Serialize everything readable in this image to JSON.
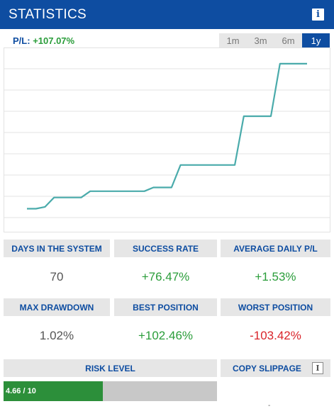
{
  "header": {
    "title": "STATISTICS",
    "info_icon": "info-icon"
  },
  "pl": {
    "label": "P/L:",
    "value": "+107.07%"
  },
  "ranges": [
    {
      "label": "1m",
      "active": false
    },
    {
      "label": "3m",
      "active": false
    },
    {
      "label": "6m",
      "active": false
    },
    {
      "label": "1y",
      "active": true
    }
  ],
  "chart_data": {
    "type": "line",
    "title": "",
    "xlabel": "",
    "ylabel": "",
    "x": [
      0,
      1,
      2,
      3,
      4,
      5,
      6,
      7,
      8,
      9,
      10,
      11,
      12,
      13,
      14,
      15,
      16,
      17,
      18,
      19,
      20,
      21,
      22,
      23,
      24,
      25,
      26,
      27,
      28,
      29,
      30,
      31
    ],
    "series": [
      {
        "values": [
          0,
          0,
          1.5,
          9,
          9,
          9,
          9,
          14,
          14,
          14,
          14,
          14,
          14,
          14,
          17,
          17,
          17,
          35,
          35,
          35,
          35,
          35,
          35,
          35,
          74,
          74,
          74,
          74,
          116,
          116,
          116,
          116
        ]
      }
    ],
    "ylim": [
      -15,
      125
    ],
    "grid": true,
    "line_color": "#4aabab"
  },
  "stats": {
    "days": {
      "label": "DAYS IN THE SYSTEM",
      "value": "70"
    },
    "success": {
      "label": "SUCCESS RATE",
      "value": "+76.47%"
    },
    "avg_daily": {
      "label": "AVERAGE DAILY P/L",
      "value": "+1.53%"
    },
    "max_dd": {
      "label": "MAX DRAWDOWN",
      "value": "1.02%"
    },
    "best": {
      "label": "BEST POSITION",
      "value": "+102.46%"
    },
    "worst": {
      "label": "WORST POSITION",
      "value": "-103.42%"
    }
  },
  "risk": {
    "label": "RISK LEVEL",
    "value_text": "4.66 / 10",
    "level": 4.66,
    "max": 10
  },
  "copy_slippage": {
    "label": "COPY SLIPPAGE",
    "info_icon": "info-icon"
  },
  "colors": {
    "brand": "#0e4da1",
    "positive": "#2a9d3a",
    "negative": "#d9242a",
    "risk_fill": "#2c8f3a"
  }
}
